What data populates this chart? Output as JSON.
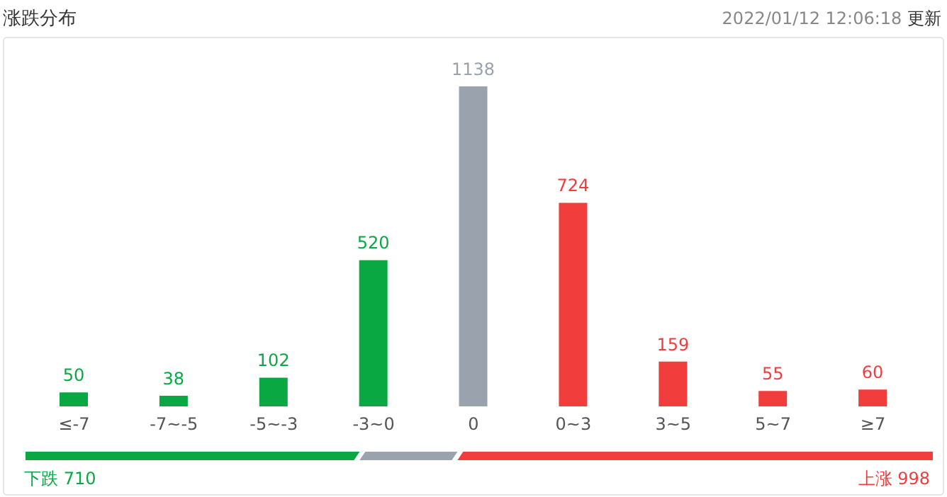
{
  "chart_data": {
    "type": "bar",
    "title": "涨跌分布",
    "categories": [
      "≤-7",
      "-7~-5",
      "-5~-3",
      "-3~0",
      "0",
      "0~3",
      "3~5",
      "5~7",
      "≥7"
    ],
    "values": [
      50,
      38,
      102,
      520,
      1138,
      724,
      159,
      55,
      60
    ],
    "colors": [
      "#0aa843",
      "#0aa843",
      "#0aa843",
      "#0aa843",
      "#9aa3ad",
      "#f23d3d",
      "#f23d3d",
      "#f23d3d",
      "#f23d3d"
    ],
    "data_labels": true,
    "grid": false,
    "legend": false,
    "tick_labels": "x",
    "annotations": [
      "2022/01/12 12:06:18",
      "更新",
      "下跌 710",
      "上涨 998"
    ]
  }
}
